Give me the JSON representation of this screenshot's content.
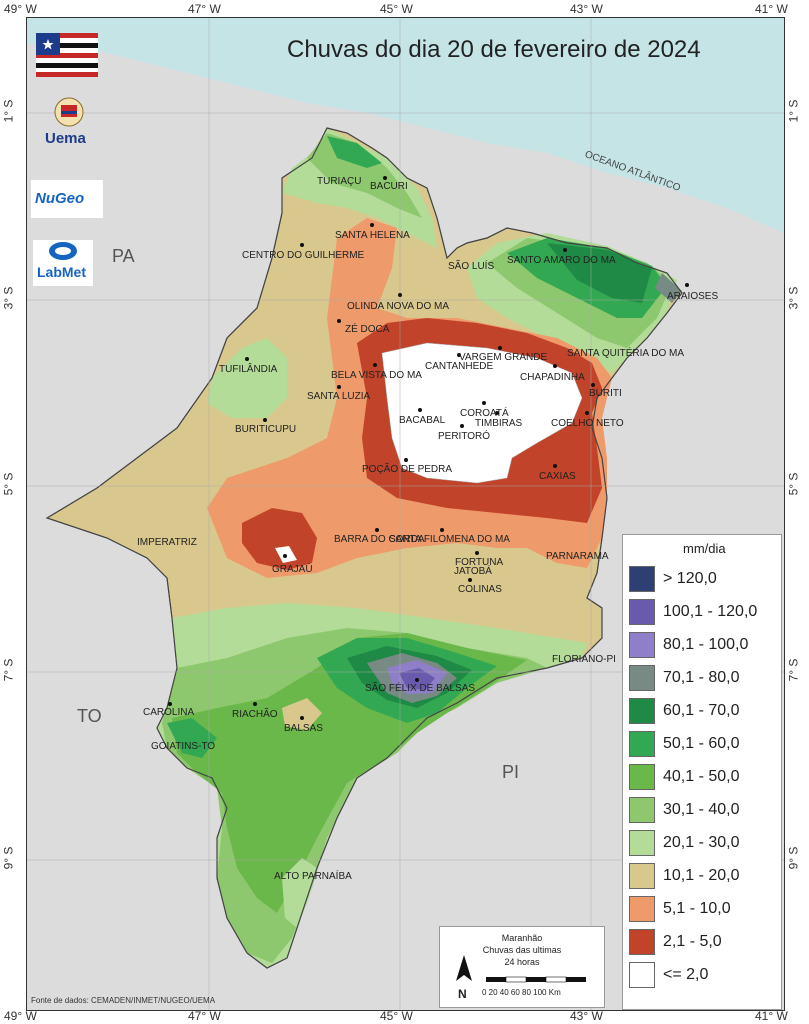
{
  "title": "Chuvas do dia 20 de fevereiro de 2024",
  "lon_ticks": [
    "49° W",
    "47° W",
    "45° W",
    "43° W",
    "41° W"
  ],
  "lat_ticks": [
    "1° S",
    "3° S",
    "5° S",
    "7° S",
    "9° S"
  ],
  "regions": {
    "pa": "PA",
    "to": "TO",
    "pi": "PI"
  },
  "ocean_label": "OCEANO ATLÂNTICO",
  "cities": [
    {
      "name": "TURIAÇU"
    },
    {
      "name": "BACURI"
    },
    {
      "name": "SANTA HELENA"
    },
    {
      "name": "CENTRO DO GUILHERME"
    },
    {
      "name": "SÃO LUÍS"
    },
    {
      "name": "SANTO AMARO DO MA"
    },
    {
      "name": "ARAIOSES"
    },
    {
      "name": "OLINDA NOVA DO MA"
    },
    {
      "name": "ZÉ DOCA"
    },
    {
      "name": "SANTA QUITÉRIA DO MA"
    },
    {
      "name": "VARGEM GRANDE"
    },
    {
      "name": "CANTANHEDE"
    },
    {
      "name": "TUFILÂNDIA"
    },
    {
      "name": "BELA VISTA DO MA"
    },
    {
      "name": "CHAPADINHA"
    },
    {
      "name": "BURITI"
    },
    {
      "name": "SANTA LUZIA"
    },
    {
      "name": "COROATÁ"
    },
    {
      "name": "BACABAL"
    },
    {
      "name": "TIMBIRAS"
    },
    {
      "name": "COELHO NETO"
    },
    {
      "name": "BURITICUPU"
    },
    {
      "name": "PERITORÓ"
    },
    {
      "name": "POÇÃO DE PEDRA"
    },
    {
      "name": "CAXIAS"
    },
    {
      "name": "IMPERATRIZ"
    },
    {
      "name": "BARRA DO CORDA"
    },
    {
      "name": "SANTA FILOMENA DO MA"
    },
    {
      "name": "FORTUNA"
    },
    {
      "name": "JATOBÁ"
    },
    {
      "name": "PARNARAMA"
    },
    {
      "name": "GRAJAÚ"
    },
    {
      "name": "COLINAS"
    },
    {
      "name": "FLORIANO-PI"
    },
    {
      "name": "SÃO FÉLIX DE BALSAS"
    },
    {
      "name": "CAROLINA"
    },
    {
      "name": "RIACHÃO"
    },
    {
      "name": "BALSAS"
    },
    {
      "name": "GOIATINS-TO"
    },
    {
      "name": "ALTO PARNAÍBA"
    }
  ],
  "legend": {
    "title": "mm/dia",
    "items": [
      {
        "label": "> 120,0",
        "color": "#2e3f73"
      },
      {
        "label": "100,1 - 120,0",
        "color": "#6a5aad"
      },
      {
        "label": "80,1 - 100,0",
        "color": "#8e7fc8"
      },
      {
        "label": "70,1 - 80,0",
        "color": "#788a84"
      },
      {
        "label": "60,1 - 70,0",
        "color": "#1f8a45"
      },
      {
        "label": "50,1 - 60,0",
        "color": "#33a852"
      },
      {
        "label": "40,1 - 50,0",
        "color": "#6bb84a"
      },
      {
        "label": "30,1 - 40,0",
        "color": "#8ec86e"
      },
      {
        "label": "20,1 - 30,0",
        "color": "#b3dc98"
      },
      {
        "label": "10,1 - 20,0",
        "color": "#d9c88e"
      },
      {
        "label": "5,1 - 10,0",
        "color": "#ee9a6a"
      },
      {
        "label": "2,1 - 5,0",
        "color": "#c0432a"
      },
      {
        "label": "<= 2,0",
        "color": "#ffffff"
      }
    ]
  },
  "info": {
    "line1": "Maranhão",
    "line2": "Chuvas das ultimas",
    "line3": "24 horas",
    "north": "N",
    "scale": "0  20  40  60  80  100 Km"
  },
  "source": "Fonte de dados: CEMADEN/INMET/NUGEO/UEMA",
  "logos": {
    "uema": "Uema",
    "nugeo": "NuGeo",
    "labmet": "LabMet"
  },
  "colors": {
    "ocean": "#c5e4e6",
    "land": "#dcdcdc"
  }
}
